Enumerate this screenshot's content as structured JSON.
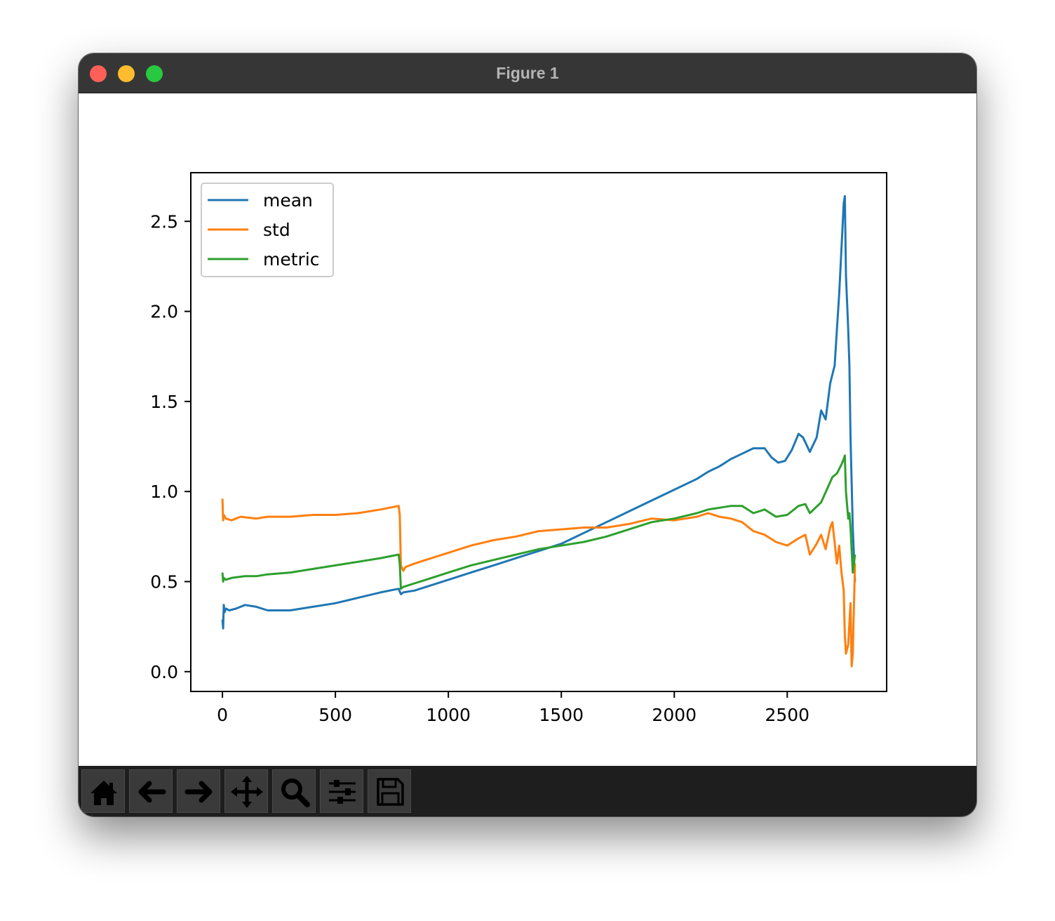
{
  "window": {
    "title": "Figure 1",
    "traffic_colors": [
      "#fe5f57",
      "#febc2e",
      "#28c840"
    ]
  },
  "toolbar": {
    "buttons": [
      {
        "name": "home-button",
        "icon": "home-icon"
      },
      {
        "name": "back-button",
        "icon": "arrow-left-icon"
      },
      {
        "name": "forward-button",
        "icon": "arrow-right-icon"
      },
      {
        "name": "pan-button",
        "icon": "move-icon"
      },
      {
        "name": "zoom-button",
        "icon": "magnifier-icon"
      },
      {
        "name": "configure-subplots-button",
        "icon": "sliders-icon"
      },
      {
        "name": "save-button",
        "icon": "floppy-disk-icon"
      }
    ]
  },
  "chart_data": {
    "type": "line",
    "title": "",
    "xlabel": "",
    "ylabel": "",
    "xlim": [
      -140,
      2940
    ],
    "ylim": [
      -0.11,
      2.77
    ],
    "xticks": [
      0,
      500,
      1000,
      1500,
      2000,
      2500
    ],
    "xtick_labels": [
      "0",
      "500",
      "1000",
      "1500",
      "2000",
      "2500"
    ],
    "yticks": [
      0.0,
      0.5,
      1.0,
      1.5,
      2.0,
      2.5
    ],
    "ytick_labels": [
      "0.0",
      "0.5",
      "1.0",
      "1.5",
      "2.0",
      "2.5"
    ],
    "grid": false,
    "legend_position": "top-left",
    "series": [
      {
        "name": "mean",
        "color": "#1f77b4",
        "x": [
          0,
          3,
          6,
          10,
          15,
          30,
          60,
          100,
          150,
          200,
          250,
          300,
          400,
          500,
          600,
          700,
          780,
          790,
          800,
          850,
          900,
          1000,
          1100,
          1200,
          1300,
          1400,
          1500,
          1600,
          1700,
          1800,
          1900,
          2000,
          2100,
          2150,
          2200,
          2250,
          2300,
          2350,
          2400,
          2430,
          2460,
          2490,
          2520,
          2550,
          2570,
          2600,
          2630,
          2650,
          2670,
          2690,
          2700,
          2710,
          2720,
          2730,
          2740,
          2750,
          2755,
          2760,
          2765,
          2770,
          2775,
          2780,
          2790,
          2800
        ],
        "y": [
          0.29,
          0.24,
          0.37,
          0.33,
          0.35,
          0.34,
          0.35,
          0.37,
          0.36,
          0.34,
          0.34,
          0.34,
          0.36,
          0.38,
          0.41,
          0.44,
          0.46,
          0.43,
          0.44,
          0.45,
          0.47,
          0.51,
          0.55,
          0.59,
          0.63,
          0.67,
          0.71,
          0.77,
          0.83,
          0.89,
          0.95,
          1.01,
          1.07,
          1.11,
          1.14,
          1.18,
          1.21,
          1.24,
          1.24,
          1.19,
          1.16,
          1.17,
          1.23,
          1.32,
          1.3,
          1.22,
          1.3,
          1.45,
          1.4,
          1.6,
          1.65,
          1.7,
          1.9,
          2.1,
          2.35,
          2.6,
          2.64,
          2.2,
          2.05,
          1.9,
          1.7,
          1.3,
          0.8,
          0.5
        ]
      },
      {
        "name": "std",
        "color": "#ff7f0e",
        "x": [
          0,
          3,
          6,
          15,
          40,
          80,
          150,
          200,
          300,
          400,
          500,
          600,
          700,
          780,
          785,
          790,
          800,
          810,
          850,
          900,
          1000,
          1100,
          1200,
          1300,
          1400,
          1500,
          1600,
          1700,
          1800,
          1900,
          2000,
          2100,
          2150,
          2200,
          2250,
          2300,
          2350,
          2400,
          2450,
          2500,
          2550,
          2580,
          2600,
          2630,
          2650,
          2670,
          2690,
          2700,
          2720,
          2730,
          2740,
          2750,
          2755,
          2760,
          2770,
          2780,
          2785,
          2790,
          2800
        ],
        "y": [
          0.96,
          0.84,
          0.87,
          0.85,
          0.84,
          0.86,
          0.85,
          0.86,
          0.86,
          0.87,
          0.87,
          0.88,
          0.9,
          0.92,
          0.87,
          0.59,
          0.56,
          0.58,
          0.6,
          0.62,
          0.66,
          0.7,
          0.73,
          0.75,
          0.78,
          0.79,
          0.8,
          0.8,
          0.82,
          0.85,
          0.84,
          0.86,
          0.88,
          0.86,
          0.85,
          0.83,
          0.78,
          0.76,
          0.72,
          0.7,
          0.74,
          0.76,
          0.65,
          0.71,
          0.76,
          0.68,
          0.8,
          0.83,
          0.6,
          0.7,
          0.55,
          0.45,
          0.2,
          0.1,
          0.15,
          0.38,
          0.03,
          0.1,
          0.6
        ]
      },
      {
        "name": "metric",
        "color": "#2ca02c",
        "x": [
          0,
          3,
          6,
          15,
          40,
          100,
          150,
          200,
          300,
          400,
          500,
          600,
          700,
          780,
          785,
          790,
          800,
          850,
          900,
          1000,
          1100,
          1200,
          1300,
          1400,
          1500,
          1600,
          1700,
          1800,
          1900,
          2000,
          2100,
          2150,
          2200,
          2250,
          2300,
          2350,
          2400,
          2450,
          2500,
          2550,
          2580,
          2600,
          2650,
          2700,
          2720,
          2740,
          2750,
          2755,
          2760,
          2770,
          2775,
          2780,
          2790,
          2800
        ],
        "y": [
          0.55,
          0.5,
          0.52,
          0.51,
          0.52,
          0.53,
          0.53,
          0.54,
          0.55,
          0.57,
          0.59,
          0.61,
          0.63,
          0.65,
          0.6,
          0.46,
          0.47,
          0.49,
          0.51,
          0.55,
          0.59,
          0.62,
          0.65,
          0.68,
          0.7,
          0.72,
          0.75,
          0.79,
          0.83,
          0.85,
          0.88,
          0.9,
          0.91,
          0.92,
          0.92,
          0.88,
          0.9,
          0.86,
          0.87,
          0.92,
          0.93,
          0.88,
          0.94,
          1.08,
          1.1,
          1.15,
          1.18,
          1.2,
          1.0,
          0.85,
          0.88,
          0.8,
          0.55,
          0.65
        ]
      }
    ]
  }
}
